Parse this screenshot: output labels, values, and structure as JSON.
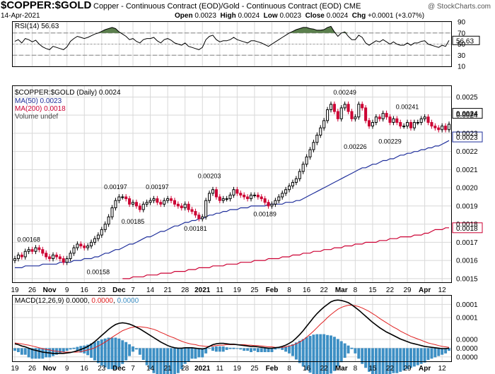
{
  "header": {
    "symbol": "$COPPER:$GOLD",
    "description": "Copper - Continuous Contract (EOD)/Gold - Continuous Contract (EOD) CME",
    "date": "14-Apr-2021",
    "open_label": "Open",
    "open": "0.0023",
    "high_label": "High",
    "high": "0.0024",
    "low_label": "Low",
    "low": "0.0023",
    "close_label": "Close",
    "close": "0.0024",
    "chg_label": "Chg",
    "chg": "+0.0001 (+3.07%)",
    "watermark": "@ StockCharts.com"
  },
  "colors": {
    "up": "#000000",
    "down": "#cc0033",
    "ma50": "#1f2f9b",
    "ma200": "#cc0033",
    "rsi_fill": "#5b7f4d",
    "hist": "#3d8fc4",
    "macd_signal": "#e02020",
    "grid": "#d8d8d8"
  },
  "rsi": {
    "legend": "RSI(14) 56.63",
    "tick_labels": [
      "90",
      "70",
      "50",
      "30",
      "10"
    ],
    "last_badge": "56.63"
  },
  "price": {
    "legend": "$COPPER:$GOLD (Daily) 0.0024",
    "ma50_legend": "MA(50) 0.0023",
    "ma200_legend": "MA(200) 0.0018",
    "volume_legend": "Volume undef",
    "badge_last": "0.0024",
    "badge_ma50": "0.0023",
    "badge_ma200": "0.0018",
    "annotations": [
      "0.00168",
      "0.00158",
      "0.00197",
      "0.00185",
      "0.00197",
      "0.00203",
      "0.00181",
      "0.00189",
      "0.00249",
      "0.00226",
      "0.00241",
      "0.00229"
    ]
  },
  "macd": {
    "legend_label": "MACD(12,26,9)",
    "legend_macd": "0.0000",
    "legend_signal": "0.0000",
    "legend_hist": "0.0000",
    "tick_labels": [
      "0.0001",
      "0.0001",
      "0.0000",
      "0.0000",
      "0.0000"
    ]
  },
  "chart_data": {
    "type": "candlestick",
    "title": "$COPPER:$GOLD (Daily)",
    "x_tick_labels": [
      "19",
      "26",
      "Nov",
      "9",
      "16",
      "23",
      "Dec",
      "7",
      "14",
      "21",
      "28",
      "2021",
      "11",
      "19",
      "25",
      "Feb",
      "8",
      "16",
      "22",
      "Mar",
      "8",
      "15",
      "22",
      "29",
      "Apr",
      "12"
    ],
    "ylim": [
      0.00148,
      0.00256
    ],
    "y_tick_labels": [
      "0.0025",
      "0.0024",
      "0.0023",
      "0.0022",
      "0.0021",
      "0.0020",
      "0.0019",
      "0.0018",
      "0.0017",
      "0.0016",
      "0.0015"
    ],
    "close": [
      0.00161,
      0.00163,
      0.00162,
      0.00165,
      0.00166,
      0.00165,
      0.00167,
      0.00166,
      0.00164,
      0.00162,
      0.00161,
      0.00163,
      0.00162,
      0.00161,
      0.00159,
      0.00161,
      0.00164,
      0.00167,
      0.00169,
      0.00168,
      0.00167,
      0.00168,
      0.0017,
      0.00172,
      0.00174,
      0.00177,
      0.0018,
      0.00184,
      0.00189,
      0.00193,
      0.00195,
      0.00195,
      0.00194,
      0.00191,
      0.00192,
      0.0019,
      0.00188,
      0.00191,
      0.00192,
      0.00193,
      0.00194,
      0.00192,
      0.00191,
      0.00193,
      0.00194,
      0.00193,
      0.00191,
      0.0019,
      0.00189,
      0.00191,
      0.00188,
      0.00187,
      0.00185,
      0.00183,
      0.00184,
      0.00193,
      0.00197,
      0.00199,
      0.00195,
      0.00193,
      0.00194,
      0.00194,
      0.00196,
      0.00199,
      0.00197,
      0.00196,
      0.00195,
      0.00194,
      0.00196,
      0.00196,
      0.00195,
      0.00194,
      0.00192,
      0.0019,
      0.00191,
      0.00193,
      0.00195,
      0.00197,
      0.00199,
      0.00201,
      0.00203,
      0.00205,
      0.00209,
      0.00213,
      0.00217,
      0.00221,
      0.00225,
      0.00229,
      0.00233,
      0.00237,
      0.00243,
      0.00246,
      0.00242,
      0.00238,
      0.00244,
      0.00246,
      0.00242,
      0.00238,
      0.00239,
      0.00246,
      0.00244,
      0.00237,
      0.00234,
      0.00236,
      0.00239,
      0.00238,
      0.00241,
      0.00239,
      0.00236,
      0.00238,
      0.00236,
      0.00234,
      0.00234,
      0.00236,
      0.00233,
      0.00236,
      0.00236,
      0.00238,
      0.00239,
      0.00236,
      0.00234,
      0.00233,
      0.00232,
      0.00234,
      0.00232,
      0.00235
    ],
    "ma50": [
      0.00156,
      0.00156,
      0.00156,
      0.00157,
      0.00157,
      0.00157,
      0.00157,
      0.00157,
      0.00158,
      0.00158,
      0.00158,
      0.00158,
      0.00158,
      0.00159,
      0.00159,
      0.00159,
      0.00159,
      0.0016,
      0.0016,
      0.0016,
      0.00161,
      0.00161,
      0.00161,
      0.00162,
      0.00162,
      0.00163,
      0.00164,
      0.00164,
      0.00165,
      0.00166,
      0.00166,
      0.00167,
      0.00168,
      0.00169,
      0.00169,
      0.0017,
      0.00171,
      0.00172,
      0.00173,
      0.00173,
      0.00174,
      0.00175,
      0.00176,
      0.00176,
      0.00177,
      0.00178,
      0.00179,
      0.00179,
      0.0018,
      0.00181,
      0.00181,
      0.00182,
      0.00182,
      0.00183,
      0.00183,
      0.00184,
      0.00185,
      0.00185,
      0.00186,
      0.00186,
      0.00187,
      0.00187,
      0.00188,
      0.00188,
      0.00188,
      0.00189,
      0.00189,
      0.00189,
      0.0019,
      0.0019,
      0.0019,
      0.0019,
      0.0019,
      0.00191,
      0.00191,
      0.00191,
      0.00191,
      0.00191,
      0.00192,
      0.00192,
      0.00192,
      0.00193,
      0.00193,
      0.00194,
      0.00195,
      0.00196,
      0.00197,
      0.00198,
      0.00199,
      0.002,
      0.00201,
      0.00202,
      0.00203,
      0.00204,
      0.00205,
      0.00206,
      0.00207,
      0.00208,
      0.00209,
      0.0021,
      0.00211,
      0.00211,
      0.00212,
      0.00213,
      0.00213,
      0.00214,
      0.00215,
      0.00215,
      0.00216,
      0.00216,
      0.00217,
      0.00218,
      0.00218,
      0.00219,
      0.00219,
      0.0022,
      0.0022,
      0.00221,
      0.00221,
      0.00222,
      0.00222,
      0.00223,
      0.00223,
      0.00224,
      0.00225,
      0.00226
    ],
    "ma200": [
      null,
      null,
      null,
      null,
      null,
      null,
      null,
      null,
      null,
      null,
      null,
      null,
      null,
      null,
      null,
      null,
      null,
      null,
      null,
      null,
      null,
      null,
      null,
      null,
      null,
      null,
      null,
      null,
      null,
      null,
      null,
      0.0015,
      0.0015,
      0.0015,
      0.00151,
      0.00151,
      0.00151,
      0.00151,
      0.00152,
      0.00152,
      0.00152,
      0.00152,
      0.00153,
      0.00153,
      0.00153,
      0.00153,
      0.00154,
      0.00154,
      0.00154,
      0.00154,
      0.00155,
      0.00155,
      0.00155,
      0.00156,
      0.00156,
      0.00156,
      0.00156,
      0.00157,
      0.00157,
      0.00157,
      0.00157,
      0.00158,
      0.00158,
      0.00158,
      0.00158,
      0.00159,
      0.00159,
      0.00159,
      0.00159,
      0.0016,
      0.0016,
      0.0016,
      0.0016,
      0.00161,
      0.00161,
      0.00161,
      0.00161,
      0.00162,
      0.00162,
      0.00162,
      0.00163,
      0.00163,
      0.00163,
      0.00164,
      0.00164,
      0.00164,
      0.00165,
      0.00165,
      0.00165,
      0.00166,
      0.00166,
      0.00166,
      0.00167,
      0.00167,
      0.00167,
      0.00168,
      0.00168,
      0.00168,
      0.00169,
      0.00169,
      0.00169,
      0.0017,
      0.0017,
      0.0017,
      0.0017,
      0.00171,
      0.00171,
      0.00171,
      0.00172,
      0.00172,
      0.00172,
      0.00173,
      0.00173,
      0.00173,
      0.00173,
      0.00174,
      0.00174,
      0.00174,
      0.00175,
      0.00175,
      0.00176,
      0.00177,
      0.00177,
      0.00177,
      0.00178,
      0.00178
    ],
    "rsi": [
      55,
      58,
      52,
      60,
      58,
      54,
      57,
      50,
      45,
      42,
      40,
      46,
      44,
      42,
      40,
      45,
      55,
      60,
      64,
      62,
      60,
      62,
      65,
      68,
      70,
      73,
      76,
      78,
      80,
      78,
      72,
      68,
      64,
      58,
      60,
      55,
      52,
      58,
      60,
      60,
      62,
      56,
      52,
      58,
      60,
      57,
      52,
      50,
      48,
      52,
      46,
      44,
      42,
      40,
      44,
      58,
      64,
      66,
      58,
      54,
      56,
      56,
      58,
      62,
      58,
      56,
      54,
      52,
      56,
      56,
      54,
      52,
      49,
      46,
      50,
      54,
      58,
      62,
      66,
      70,
      73,
      76,
      78,
      80,
      80,
      78,
      77,
      75,
      75,
      76,
      80,
      82,
      72,
      64,
      70,
      72,
      64,
      58,
      58,
      66,
      62,
      52,
      48,
      52,
      56,
      54,
      58,
      54,
      50,
      54,
      50,
      48,
      48,
      52,
      48,
      52,
      52,
      55,
      56,
      50,
      48,
      46,
      44,
      48,
      46,
      56.63
    ],
    "macd": [
      1e-05,
      8e-06,
      5e-06,
      3e-06,
      0,
      -3e-06,
      -5e-06,
      -7e-06,
      -9e-06,
      -1e-05,
      -1.1e-05,
      -1.2e-05,
      -1.2e-05,
      -1.2e-05,
      -1.2e-05,
      -1.1e-05,
      -1e-05,
      -8e-06,
      -6e-06,
      -3e-06,
      0,
      4e-06,
      9e-06,
      1.5e-05,
      2.2e-05,
      2.9e-05,
      3.6e-05,
      4.3e-05,
      4.9e-05,
      5.4e-05,
      5.7e-05,
      5.8e-05,
      5.7e-05,
      5.5e-05,
      5.2e-05,
      4.8e-05,
      4.4e-05,
      3.9e-05,
      3.4e-05,
      2.9e-05,
      2.4e-05,
      1.9e-05,
      1.4e-05,
      1e-05,
      6e-06,
      3e-06,
      1e-06,
      0,
      0,
      1e-06,
      1e-06,
      1e-06,
      0,
      -1e-06,
      -2e-06,
      0,
      4e-06,
      8e-06,
      1e-05,
      1.1e-05,
      1.1e-05,
      1e-05,
      9e-06,
      9e-06,
      8e-06,
      7e-06,
      6e-06,
      5e-06,
      4e-06,
      4e-06,
      3e-06,
      2e-06,
      1e-06,
      0,
      0,
      1e-06,
      2e-06,
      4e-06,
      7e-06,
      1.1e-05,
      1.6e-05,
      2.3e-05,
      3.1e-05,
      4e-05,
      5e-05,
      6e-05,
      7e-05,
      7.9e-05,
      8.7e-05,
      9.4e-05,
      0.0001,
      0.000106,
      0.000109,
      0.00011,
      0.000109,
      0.000107,
      0.000104,
      9.9e-05,
      9.3e-05,
      8.7e-05,
      8e-05,
      7.3e-05,
      6.6e-05,
      5.9e-05,
      5.3e-05,
      4.7e-05,
      4.2e-05,
      3.7e-05,
      3.3e-05,
      2.9e-05,
      2.5e-05,
      2.1e-05,
      1.8e-05,
      1.5e-05,
      1.2e-05,
      1e-05,
      8e-06,
      6e-06,
      4e-06,
      3e-06,
      2e-06,
      1e-06,
      0,
      -1e-06,
      -1e-06,
      0
    ],
    "macd_signal": [
      1.2e-05,
      1.1e-05,
      1e-05,
      8e-06,
      7e-06,
      5e-06,
      3e-06,
      1e-06,
      -1e-06,
      -3e-06,
      -4e-06,
      -6e-06,
      -7e-06,
      -8e-06,
      -9e-06,
      -9e-06,
      -9e-06,
      -9e-06,
      -9e-06,
      -8e-06,
      -6e-06,
      -4e-06,
      -2e-06,
      1e-06,
      5e-06,
      9e-06,
      1.4e-05,
      1.9e-05,
      2.5e-05,
      3e-05,
      3.5e-05,
      4e-05,
      4.3e-05,
      4.6e-05,
      4.8e-05,
      4.9e-05,
      4.9e-05,
      4.8e-05,
      4.7e-05,
      4.5e-05,
      4.3e-05,
      4e-05,
      3.6e-05,
      3.3e-05,
      2.9e-05,
      2.6e-05,
      2.3e-05,
      1.9e-05,
      1.6e-05,
      1.3e-05,
      1.1e-05,
      9e-06,
      8e-06,
      6e-06,
      5e-06,
      4e-06,
      4e-06,
      5e-06,
      6e-06,
      7e-06,
      7e-06,
      8e-06,
      8e-06,
      8e-06,
      8e-06,
      8e-06,
      8e-06,
      7e-06,
      7e-06,
      6e-06,
      6e-06,
      5e-06,
      4e-06,
      3e-06,
      3e-06,
      2e-06,
      2e-06,
      2e-06,
      3e-06,
      5e-06,
      7e-06,
      1e-05,
      1.4e-05,
      1.9e-05,
      2.5e-05,
      3.2e-05,
      3.9e-05,
      4.7e-05,
      5.5e-05,
      6.2e-05,
      7e-05,
      7.7e-05,
      8.3e-05,
      8.9e-05,
      9.3e-05,
      9.6e-05,
      9.8e-05,
      9.8e-05,
      9.7e-05,
      9.5e-05,
      9.2e-05,
      8.8e-05,
      8.4e-05,
      7.9e-05,
      7.4e-05,
      6.8e-05,
      6.3e-05,
      5.8e-05,
      5.3e-05,
      4.8e-05,
      4.4e-05,
      3.9e-05,
      3.5e-05,
      3.1e-05,
      2.7e-05,
      2.4e-05,
      2.1e-05,
      1.8e-05,
      1.5e-05,
      1.2e-05,
      1e-05,
      8e-06,
      6e-06,
      4e-06,
      3e-06,
      2e-06
    ]
  }
}
